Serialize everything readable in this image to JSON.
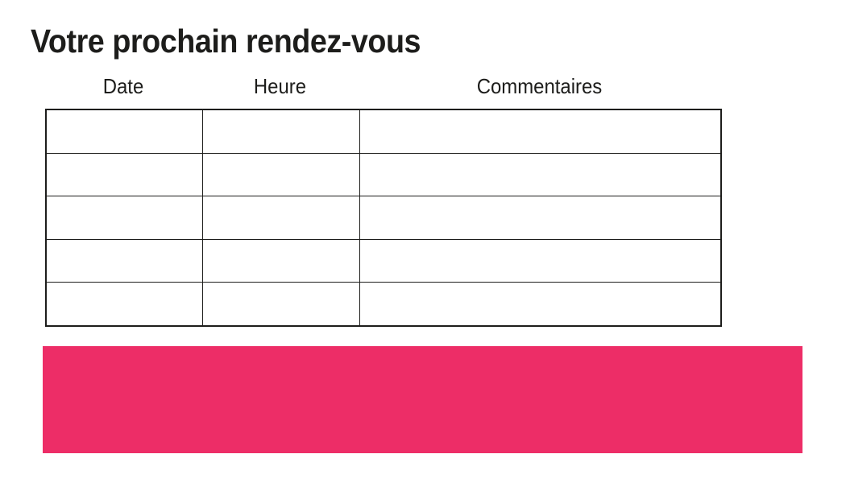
{
  "page": {
    "title": "Votre prochain rendez-vous"
  },
  "table": {
    "headers": [
      "Date",
      "Heure",
      "Commentaires"
    ],
    "rows": [
      [
        "",
        "",
        ""
      ],
      [
        "",
        "",
        ""
      ],
      [
        "",
        "",
        ""
      ],
      [
        "",
        "",
        ""
      ],
      [
        "",
        "",
        ""
      ]
    ]
  },
  "colors": {
    "text": "#1d1d1b",
    "table_border": "#1d1d1b",
    "accent_pink": "#ED2D67",
    "background": "#ffffff"
  }
}
